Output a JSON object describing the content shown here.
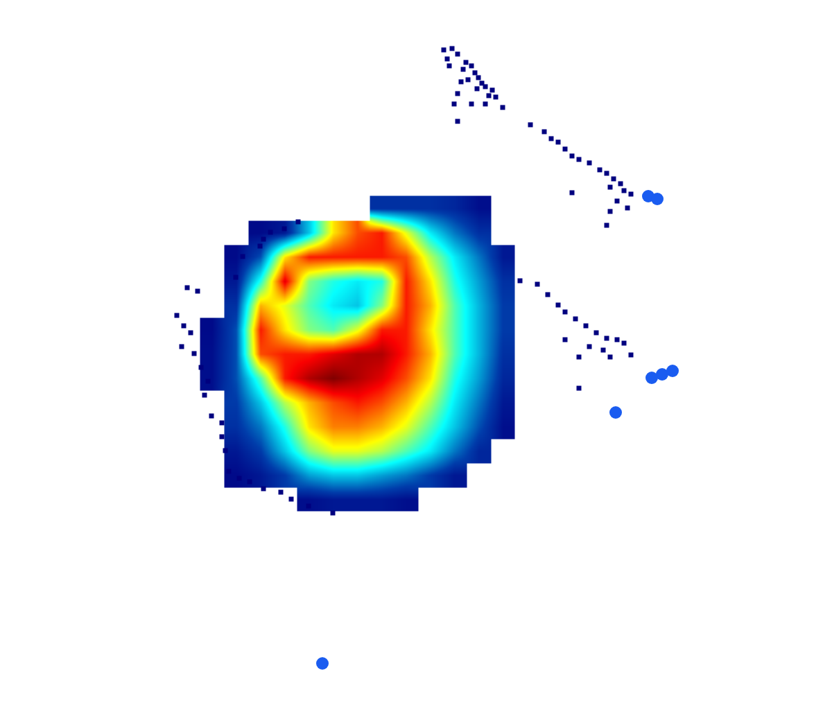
{
  "chart_data": {
    "type": "heatmap",
    "x": [
      270,
      305,
      340,
      375,
      410,
      445,
      480,
      515,
      550,
      585,
      620,
      655,
      690,
      725
    ],
    "y": [
      300,
      335,
      370,
      405,
      440,
      475,
      510,
      545,
      580,
      615,
      650,
      685,
      720
    ],
    "z": [
      [
        null,
        null,
        null,
        null,
        null,
        null,
        null,
        null,
        1,
        1,
        1,
        0.8,
        0.3,
        null
      ],
      [
        null,
        null,
        null,
        0.2,
        0.5,
        3,
        6.5,
        8,
        8.5,
        6,
        3.5,
        2,
        1,
        null
      ],
      [
        null,
        null,
        0.2,
        1.5,
        6.5,
        8.5,
        8.5,
        8.5,
        8.5,
        8,
        5.5,
        3.5,
        2,
        0.5
      ],
      [
        null,
        null,
        0.5,
        4,
        9,
        5,
        4,
        3.5,
        4,
        8.5,
        6.5,
        4,
        2.5,
        1
      ],
      [
        null,
        null,
        1,
        7,
        6,
        4.5,
        3.5,
        3,
        5,
        8.5,
        7,
        4.5,
        2.8,
        1.2
      ],
      [
        null,
        0.2,
        1.5,
        8.5,
        6.5,
        5,
        4.5,
        6,
        8.5,
        8.5,
        6.5,
        4.5,
        2.8,
        1.2
      ],
      [
        null,
        0.3,
        1.5,
        8,
        8.5,
        8.5,
        9,
        9.5,
        9.5,
        8.5,
        7,
        4.5,
        2.8,
        1
      ],
      [
        null,
        0.3,
        1.5,
        4.5,
        8.5,
        9.5,
        10,
        9.5,
        9,
        8,
        6.5,
        4,
        2.5,
        0.8
      ],
      [
        null,
        null,
        1.2,
        3,
        5.5,
        7,
        8,
        8.5,
        8,
        7,
        5.5,
        3.5,
        2,
        0.5
      ],
      [
        null,
        null,
        1,
        2,
        4,
        6.5,
        7.5,
        7.5,
        7,
        6,
        4.5,
        3,
        1.5,
        0.3
      ],
      [
        null,
        null,
        0.5,
        1.2,
        3,
        5,
        6,
        6,
        5.5,
        4.5,
        3.5,
        2,
        0.8,
        null
      ],
      [
        null,
        null,
        0.2,
        0.5,
        1.2,
        2.5,
        3,
        3,
        2.5,
        2,
        1.2,
        0.5,
        null,
        null
      ],
      [
        null,
        null,
        null,
        null,
        null,
        0.3,
        0.5,
        0.5,
        0.5,
        0.3,
        null,
        null,
        null,
        null
      ]
    ],
    "zlim": [
      0,
      10
    ],
    "xlim": [
      0,
      1200
    ],
    "ylim": [
      1017,
      0
    ],
    "tick_labels": false,
    "grid": false,
    "series": [
      {
        "type": "scatter",
        "color": "#00007f",
        "marker": "square",
        "x": [
          640,
          652,
          660,
          645,
          672,
          680,
          668,
          685,
          690,
          675,
          695,
          700,
          710,
          688,
          705,
          715,
          660,
          655,
          680,
          700,
          660,
          725,
          648,
          665,
          765,
          785,
          795,
          805,
          815,
          825,
          835,
          850,
          865,
          875,
          885,
          895,
          880,
          900,
          890,
          905,
          880,
          875,
          825,
          910,
          750,
          775,
          790,
          805,
          815,
          830,
          845,
          860,
          875,
          890,
          900,
          850,
          870,
          835,
          880,
          815,
          835,
          910,
          255,
          265,
          275,
          262,
          280,
          290,
          300,
          295,
          305,
          320,
          270,
          285,
          340,
          350,
          375,
          390,
          410,
          430,
          380,
          330,
          345,
          360,
          380,
          405,
          420,
          445,
          480,
          325,
          320
        ],
        "y": [
          72,
          70,
          78,
          85,
          90,
          95,
          100,
          105,
          112,
          115,
          120,
          125,
          130,
          128,
          138,
          140,
          135,
          150,
          150,
          150,
          175,
          155,
          95,
          118,
          180,
          190,
          200,
          205,
          215,
          225,
          230,
          235,
          245,
          250,
          258,
          265,
          270,
          275,
          290,
          300,
          305,
          325,
          278,
          280,
          405,
          410,
          425,
          440,
          450,
          460,
          470,
          480,
          488,
          490,
          495,
          500,
          505,
          515,
          515,
          490,
          560,
          512,
          455,
          470,
          480,
          500,
          510,
          530,
          550,
          570,
          600,
          610,
          415,
          420,
          400,
          370,
          355,
          335,
          330,
          320,
          345,
          680,
          690,
          695,
          705,
          710,
          720,
          730,
          740,
          650,
          630
        ]
      },
      {
        "type": "scatter",
        "color": "#1a5cf0",
        "marker": "circle",
        "x": [
          935,
          948,
          955,
          970,
          940,
          888,
          465
        ],
        "y": [
          283,
          287,
          540,
          535,
          545,
          595,
          957
        ]
      }
    ]
  }
}
